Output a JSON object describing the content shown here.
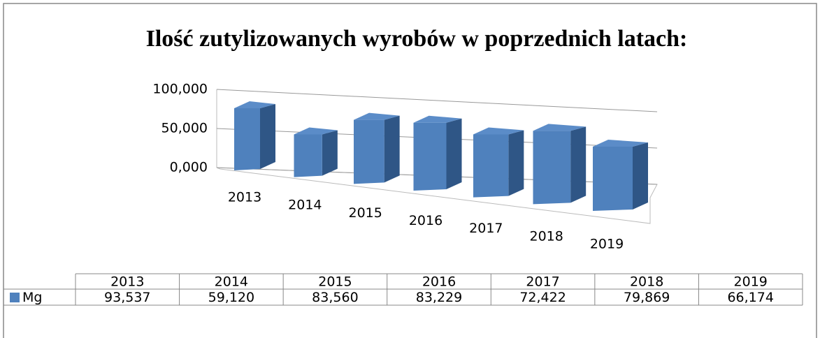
{
  "chart_data": {
    "type": "bar",
    "title": "Ilość zutylizowanych wyrobów w poprzednich latach:",
    "categories": [
      "2013",
      "2014",
      "2015",
      "2016",
      "2017",
      "2018",
      "2019"
    ],
    "series": [
      {
        "name": "Mg",
        "color": "#4f81bd",
        "values": [
          93.537,
          59.12,
          83.56,
          83.229,
          72.422,
          79.869,
          66.174
        ],
        "value_labels": [
          "93,537",
          "59,120",
          "83,560",
          "83,229",
          "72,422",
          "79,869",
          "66,174"
        ]
      }
    ],
    "ylim": [
      0,
      100
    ],
    "yticks": [
      {
        "value": 0,
        "label": "0,000"
      },
      {
        "value": 50,
        "label": "50,000"
      },
      {
        "value": 100,
        "label": "100,000"
      }
    ],
    "grid": true
  }
}
